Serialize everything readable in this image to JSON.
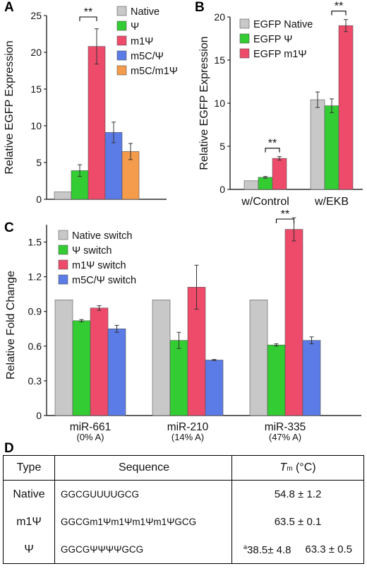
{
  "panels": {
    "A": {
      "letter": "A",
      "chart_data": {
        "type": "bar",
        "ylabel": "Relative EGFP Expression",
        "ylim": [
          0,
          25
        ],
        "yticks": [
          0,
          5,
          10,
          15,
          20,
          25
        ],
        "legend_position": "top-right",
        "series": [
          {
            "name": "Native",
            "value": 1.0,
            "error": 0.0,
            "color": "#c8c8c8"
          },
          {
            "name": "Ψ",
            "value": 3.9,
            "error": 0.8,
            "color": "#33cc33"
          },
          {
            "name": "m1Ψ",
            "value": 20.8,
            "error": 2.4,
            "color": "#ee4a6a"
          },
          {
            "name": "m5C/Ψ",
            "value": 9.1,
            "error": 1.4,
            "color": "#5b7be6"
          },
          {
            "name": "m5C/m1Ψ",
            "value": 6.5,
            "error": 1.1,
            "color": "#f59b4c"
          }
        ],
        "annotations": [
          {
            "text": "**",
            "between": [
              1,
              2
            ]
          }
        ]
      }
    },
    "B": {
      "letter": "B",
      "chart_data": {
        "type": "bar",
        "ylabel": "Relative EGFP Expression",
        "ylim": [
          0,
          20
        ],
        "yticks": [
          0,
          5,
          10,
          15,
          20
        ],
        "categories": [
          "w/Control",
          "w/EKB"
        ],
        "legend_position": "top-left",
        "series": [
          {
            "name": "EGFP Native",
            "values": [
              1.0,
              10.4
            ],
            "errors": [
              0.0,
              0.9
            ],
            "color": "#c8c8c8"
          },
          {
            "name": "EGFP Ψ",
            "values": [
              1.4,
              9.7
            ],
            "errors": [
              0.1,
              0.8
            ],
            "color": "#33cc33"
          },
          {
            "name": "EGFP m1Ψ",
            "values": [
              3.6,
              19.0
            ],
            "errors": [
              0.2,
              0.7
            ],
            "color": "#ee4a6a"
          }
        ],
        "annotations": [
          {
            "text": "**",
            "category": 0,
            "between": [
              1,
              2
            ]
          },
          {
            "text": "**",
            "category": 1,
            "between": [
              1,
              2
            ]
          }
        ]
      }
    },
    "C": {
      "letter": "C",
      "chart_data": {
        "type": "bar",
        "ylabel": "Relative Fold Change",
        "ylim": [
          0,
          1.65
        ],
        "yticks": [
          "0",
          "0.3",
          "0.6",
          "0.9",
          "1.2",
          "1.5"
        ],
        "categories": [
          "miR-661",
          "miR-210",
          "miR-335"
        ],
        "category_sublabels": [
          "(0% A)",
          "(14% A)",
          "(47% A)"
        ],
        "legend_position": "top-left",
        "series": [
          {
            "name": "Native switch",
            "values": [
              1.0,
              1.0,
              1.0
            ],
            "errors": [
              0.0,
              0.0,
              0.0
            ],
            "color": "#c8c8c8"
          },
          {
            "name": "Ψ switch",
            "values": [
              0.82,
              0.65,
              0.61
            ],
            "errors": [
              0.01,
              0.07,
              0.01
            ],
            "color": "#33cc33"
          },
          {
            "name": "m1Ψ switch",
            "values": [
              0.93,
              1.11,
              1.61
            ],
            "errors": [
              0.02,
              0.19,
              0.1
            ],
            "color": "#ee4a6a"
          },
          {
            "name": "m5C/Ψ switch",
            "values": [
              0.75,
              0.48,
              0.65
            ],
            "errors": [
              0.03,
              0.005,
              0.03
            ],
            "color": "#5b7be6"
          }
        ],
        "annotations": [
          {
            "text": "**",
            "category": 2,
            "between": [
              1,
              2
            ]
          }
        ]
      }
    },
    "D": {
      "letter": "D",
      "headers": {
        "type": "Type",
        "sequence": "Sequence",
        "tm_symbol": "T",
        "tm_sub": "m",
        "tm_unit": " (°C)"
      },
      "rows": [
        {
          "type": "Native",
          "sequence": "GGCGUUUUGCG",
          "tm": "54.8 ± 1.2"
        },
        {
          "type": "m1Ψ",
          "sequence": "GGCGm1Ψm1Ψm1Ψm1ΨGCG",
          "tm": "63.5 ± 0.1"
        },
        {
          "type": "Ψ",
          "sequence": "GGCGΨΨΨΨGCG",
          "tm_sup": "a",
          "tm_a": "38.5± 4.8",
          "tm_b": "63.3 ± 0.5"
        }
      ]
    }
  }
}
